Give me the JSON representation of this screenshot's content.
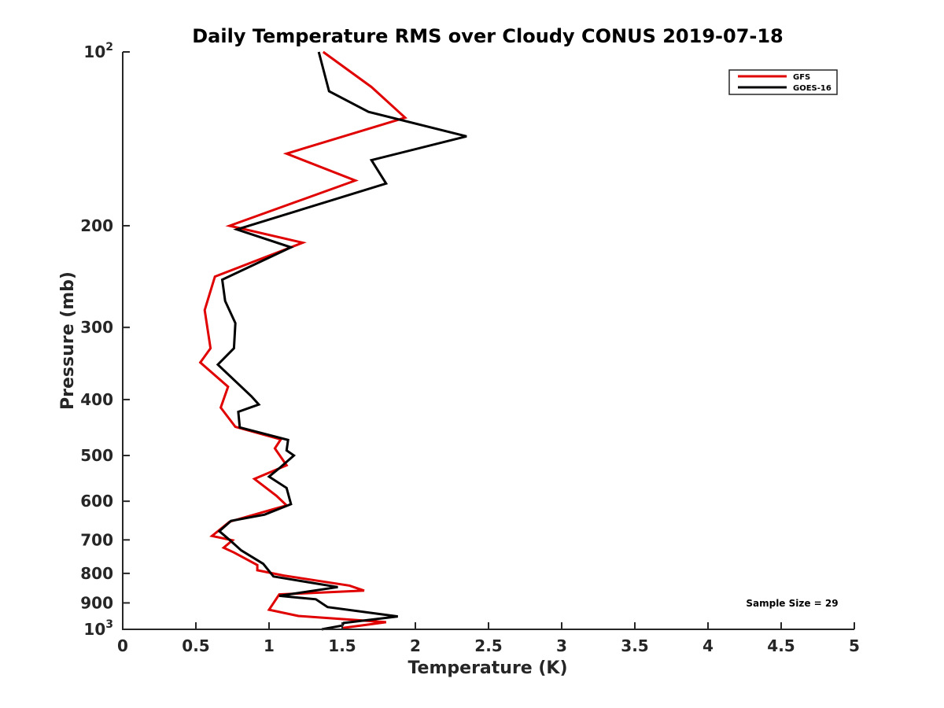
{
  "chart_data": {
    "type": "line",
    "title": "Daily Temperature RMS over Cloudy CONUS 2019-07-18",
    "xlabel": "Temperature (K)",
    "ylabel": "Pressure (mb)",
    "xlim": [
      0,
      5
    ],
    "ylim": [
      100,
      1000
    ],
    "yscale": "log",
    "y_reversed": true,
    "x_ticks": [
      "0",
      "0.5",
      "1",
      "1.5",
      "2",
      "2.5",
      "3",
      "3.5",
      "4",
      "4.5",
      "5"
    ],
    "y_ticks": [
      {
        "value": 100,
        "base": "10",
        "exp": "2"
      },
      {
        "value": 200,
        "label": "200"
      },
      {
        "value": 300,
        "label": "300"
      },
      {
        "value": 400,
        "label": "400"
      },
      {
        "value": 500,
        "label": "500"
      },
      {
        "value": 600,
        "label": "600"
      },
      {
        "value": 700,
        "label": "700"
      },
      {
        "value": 800,
        "label": "800"
      },
      {
        "value": 900,
        "label": "900"
      },
      {
        "value": 1000,
        "base": "10",
        "exp": "3"
      }
    ],
    "grid": false,
    "legend_position": "top-right",
    "annotation": "Sample Size = 29",
    "series": [
      {
        "name": "GFS",
        "color": "#e00000",
        "points": [
          [
            1.37,
            100
          ],
          [
            1.7,
            115
          ],
          [
            1.93,
            130
          ],
          [
            1.12,
            150
          ],
          [
            1.59,
            167
          ],
          [
            0.73,
            200
          ],
          [
            1.23,
            214
          ],
          [
            0.63,
            245
          ],
          [
            0.56,
            280
          ],
          [
            0.6,
            326
          ],
          [
            0.53,
            345
          ],
          [
            0.72,
            380
          ],
          [
            0.67,
            413
          ],
          [
            0.77,
            446
          ],
          [
            1.08,
            469
          ],
          [
            1.04,
            486
          ],
          [
            1.12,
            520
          ],
          [
            0.9,
            549
          ],
          [
            1.05,
            587
          ],
          [
            1.12,
            610
          ],
          [
            0.73,
            651
          ],
          [
            0.61,
            689
          ],
          [
            0.75,
            701
          ],
          [
            0.69,
            722
          ],
          [
            0.76,
            736
          ],
          [
            0.92,
            774
          ],
          [
            0.92,
            790
          ],
          [
            1.1,
            807
          ],
          [
            1.55,
            840
          ],
          [
            1.65,
            857
          ],
          [
            1.07,
            870
          ],
          [
            1.0,
            925
          ],
          [
            1.2,
            948
          ],
          [
            1.8,
            972
          ],
          [
            1.5,
            995
          ]
        ]
      },
      {
        "name": "GOES-16",
        "color": "#000000",
        "points": [
          [
            1.34,
            100
          ],
          [
            1.41,
            117
          ],
          [
            1.68,
            127
          ],
          [
            2.35,
            140
          ],
          [
            1.7,
            154
          ],
          [
            1.8,
            169
          ],
          [
            0.78,
            203
          ],
          [
            1.15,
            218
          ],
          [
            0.68,
            248
          ],
          [
            0.7,
            270
          ],
          [
            0.77,
            295
          ],
          [
            0.76,
            326
          ],
          [
            0.65,
            348
          ],
          [
            0.88,
            395
          ],
          [
            0.93,
            408
          ],
          [
            0.79,
            420
          ],
          [
            0.8,
            447
          ],
          [
            1.13,
            470
          ],
          [
            1.12,
            490
          ],
          [
            1.17,
            500
          ],
          [
            1.07,
            526
          ],
          [
            1.0,
            544
          ],
          [
            1.12,
            569
          ],
          [
            1.15,
            607
          ],
          [
            0.97,
            633
          ],
          [
            0.74,
            649
          ],
          [
            0.66,
            676
          ],
          [
            0.73,
            700
          ],
          [
            0.81,
            730
          ],
          [
            0.96,
            770
          ],
          [
            1.03,
            810
          ],
          [
            1.47,
            845
          ],
          [
            1.07,
            875
          ],
          [
            1.32,
            887
          ],
          [
            1.4,
            915
          ],
          [
            1.88,
            950
          ],
          [
            1.51,
            975
          ],
          [
            1.5,
            985
          ],
          [
            1.36,
            1000
          ]
        ]
      }
    ]
  }
}
